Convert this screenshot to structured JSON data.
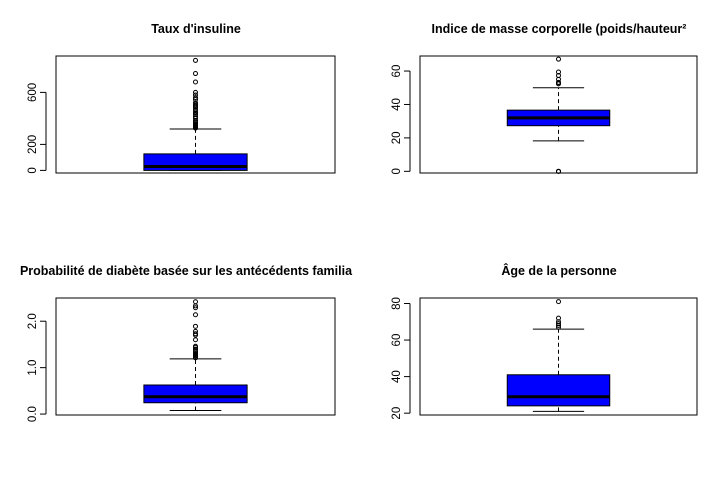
{
  "chart_data": [
    {
      "type": "boxplot",
      "title": "Taux d'insuline",
      "ylim": [
        -20,
        880
      ],
      "yticks": [
        0,
        200,
        600
      ],
      "box": {
        "whisker_low": 0,
        "q1": 0,
        "median": 30,
        "q3": 127,
        "whisker_high": 318
      },
      "outliers": [
        325,
        330,
        335,
        340,
        345,
        350,
        360,
        370,
        375,
        385,
        400,
        415,
        430,
        440,
        450,
        465,
        480,
        490,
        500,
        510,
        520,
        545,
        560,
        580,
        600,
        680,
        745,
        846
      ],
      "box_color": "#0000ff"
    },
    {
      "type": "boxplot",
      "title": "Indice de masse corporelle (poids/hauteur²",
      "ylim": [
        -1,
        69
      ],
      "yticks": [
        0,
        20,
        40,
        60
      ],
      "box": {
        "whisker_low": 18.2,
        "q1": 27.3,
        "median": 32,
        "q3": 36.6,
        "whisker_high": 50
      },
      "outliers": [
        0,
        0,
        0,
        52.3,
        52.9,
        53.2,
        55,
        57.3,
        59.4,
        67.1
      ],
      "box_color": "#0000ff"
    },
    {
      "type": "boxplot",
      "title": "Probabilité de diabète basée sur les antécédents familia",
      "ylim": [
        -0.02,
        2.5
      ],
      "yticks": [
        0.0,
        1.0,
        2.0
      ],
      "ytick_labels": [
        "0.0",
        "1.0",
        "2.0"
      ],
      "box": {
        "whisker_low": 0.078,
        "q1": 0.244,
        "median": 0.372,
        "q3": 0.626,
        "whisker_high": 1.19
      },
      "outliers": [
        1.21,
        1.22,
        1.25,
        1.26,
        1.28,
        1.29,
        1.32,
        1.35,
        1.39,
        1.4,
        1.44,
        1.46,
        1.6,
        1.7,
        1.73,
        1.78,
        1.89,
        2.14,
        2.29,
        2.33,
        2.42
      ],
      "box_color": "#0000ff"
    },
    {
      "type": "boxplot",
      "title": "Âge de la personne",
      "ylim": [
        19,
        83
      ],
      "yticks": [
        20,
        40,
        60,
        80
      ],
      "box": {
        "whisker_low": 21,
        "q1": 24,
        "median": 29,
        "q3": 41,
        "whisker_high": 66
      },
      "outliers": [
        67,
        68,
        69,
        70,
        72,
        81
      ],
      "box_color": "#0000ff"
    }
  ]
}
